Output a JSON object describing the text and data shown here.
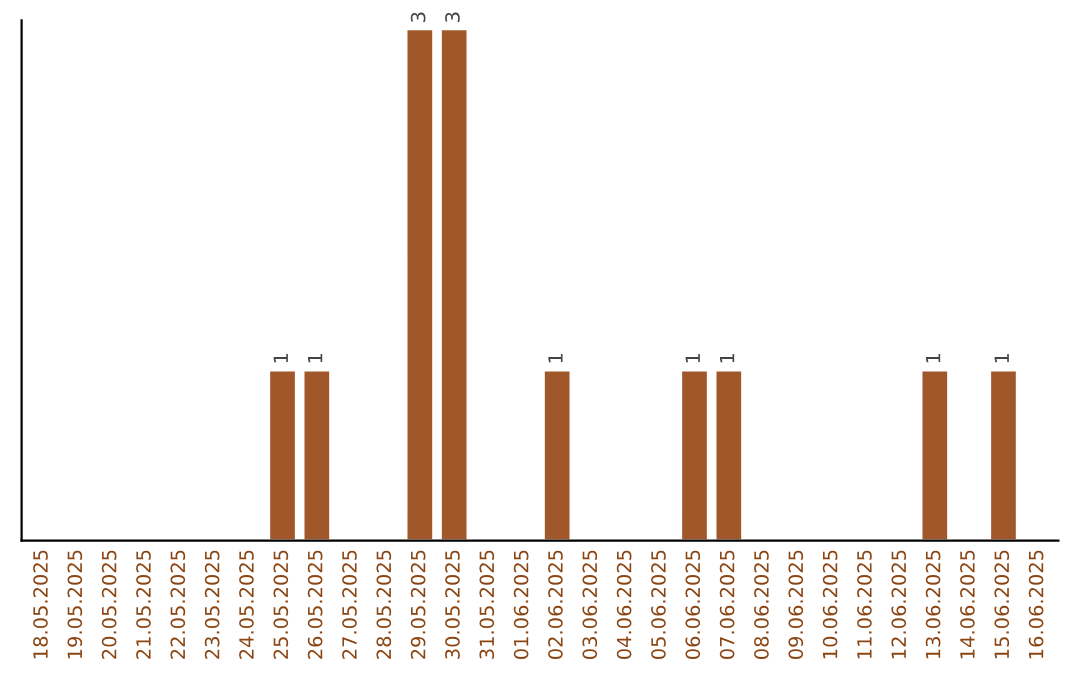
{
  "chart_data": {
    "type": "bar",
    "categories": [
      "18.05.2025",
      "19.05.2025",
      "20.05.2025",
      "21.05.2025",
      "22.05.2025",
      "23.05.2025",
      "24.05.2025",
      "25.05.2025",
      "26.05.2025",
      "27.05.2025",
      "28.05.2025",
      "29.05.2025",
      "30.05.2025",
      "31.05.2025",
      "01.06.2025",
      "02.06.2025",
      "03.06.2025",
      "04.06.2025",
      "05.06.2025",
      "06.06.2025",
      "07.06.2025",
      "08.06.2025",
      "09.06.2025",
      "10.06.2025",
      "11.06.2025",
      "12.06.2025",
      "13.06.2025",
      "14.06.2025",
      "15.06.2025",
      "16.06.2025"
    ],
    "values": [
      null,
      null,
      null,
      null,
      null,
      null,
      null,
      1,
      1,
      null,
      null,
      3,
      3,
      null,
      null,
      1,
      null,
      null,
      null,
      1,
      1,
      null,
      null,
      null,
      null,
      null,
      1,
      null,
      1,
      null
    ],
    "value_labels": [
      null,
      null,
      null,
      null,
      null,
      null,
      null,
      "1",
      "1",
      null,
      null,
      "3",
      "3",
      null,
      null,
      "1",
      null,
      null,
      null,
      "1",
      "1",
      null,
      null,
      null,
      null,
      null,
      "1",
      null,
      "1",
      null
    ],
    "color": "#a0582a",
    "ylim": [
      0,
      3.05
    ],
    "tick_labels": "x",
    "grid": false,
    "legend": false
  }
}
